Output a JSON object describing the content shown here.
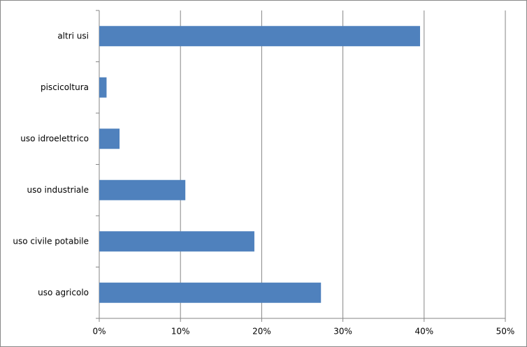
{
  "chart_data": {
    "type": "hbar",
    "categories": [
      "altri usi",
      "piscicoltura",
      "uso idroelettrico",
      "uso industriale",
      "uso civile potabile",
      "uso agricolo"
    ],
    "values": [
      39.5,
      0.9,
      2.5,
      10.6,
      19.1,
      27.3
    ],
    "color": "#4f81bd",
    "xlim": [
      0,
      50
    ],
    "xticks": [
      {
        "value": 0,
        "label": "0%"
      },
      {
        "value": 10,
        "label": "10%"
      },
      {
        "value": 20,
        "label": "20%"
      },
      {
        "value": 30,
        "label": "30%"
      },
      {
        "value": 40,
        "label": "40%"
      },
      {
        "value": 50,
        "label": "50%"
      }
    ],
    "grid": true
  }
}
